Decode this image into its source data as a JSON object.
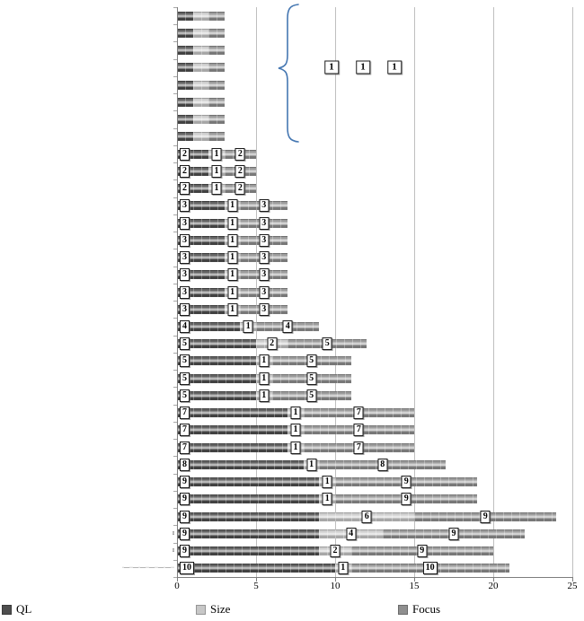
{
  "chart_data": {
    "type": "bar",
    "orientation": "horizontal",
    "stacked": true,
    "series_names": [
      "QL",
      "Size",
      "Focus"
    ],
    "colors": {
      "QL": "#4e4e4e",
      "Size": "#c7c7c7",
      "Focus": "#8f8f8f"
    },
    "x_axis": {
      "ticks": [
        0,
        5,
        10,
        15,
        20,
        25
      ],
      "min": 0,
      "max": 25,
      "gridlines": true
    },
    "rows": [
      {
        "ql": 1,
        "size": 1,
        "focus": 1,
        "labels": false
      },
      {
        "ql": 1,
        "size": 1,
        "focus": 1,
        "labels": false
      },
      {
        "ql": 1,
        "size": 1,
        "focus": 1,
        "labels": false
      },
      {
        "ql": 1,
        "size": 1,
        "focus": 1,
        "labels": false
      },
      {
        "ql": 1,
        "size": 1,
        "focus": 1,
        "labels": false
      },
      {
        "ql": 1,
        "size": 1,
        "focus": 1,
        "labels": false
      },
      {
        "ql": 1,
        "size": 1,
        "focus": 1,
        "labels": false
      },
      {
        "ql": 1,
        "size": 1,
        "focus": 1,
        "labels": false
      },
      {
        "ql": 2,
        "size": 1,
        "focus": 2,
        "labels": true
      },
      {
        "ql": 2,
        "size": 1,
        "focus": 2,
        "labels": true
      },
      {
        "ql": 2,
        "size": 1,
        "focus": 2,
        "labels": true
      },
      {
        "ql": 3,
        "size": 1,
        "focus": 3,
        "labels": true
      },
      {
        "ql": 3,
        "size": 1,
        "focus": 3,
        "labels": true
      },
      {
        "ql": 3,
        "size": 1,
        "focus": 3,
        "labels": true
      },
      {
        "ql": 3,
        "size": 1,
        "focus": 3,
        "labels": true
      },
      {
        "ql": 3,
        "size": 1,
        "focus": 3,
        "labels": true
      },
      {
        "ql": 3,
        "size": 1,
        "focus": 3,
        "labels": true
      },
      {
        "ql": 3,
        "size": 1,
        "focus": 3,
        "labels": true
      },
      {
        "ql": 4,
        "size": 1,
        "focus": 4,
        "labels": true
      },
      {
        "ql": 5,
        "size": 2,
        "focus": 5,
        "labels": true
      },
      {
        "ql": 5,
        "size": 1,
        "focus": 5,
        "labels": true
      },
      {
        "ql": 5,
        "size": 1,
        "focus": 5,
        "labels": true
      },
      {
        "ql": 5,
        "size": 1,
        "focus": 5,
        "labels": true
      },
      {
        "ql": 7,
        "size": 1,
        "focus": 7,
        "labels": true
      },
      {
        "ql": 7,
        "size": 1,
        "focus": 7,
        "labels": true
      },
      {
        "ql": 7,
        "size": 1,
        "focus": 7,
        "labels": true
      },
      {
        "ql": 8,
        "size": 1,
        "focus": 8,
        "labels": true
      },
      {
        "ql": 9,
        "size": 1,
        "focus": 9,
        "labels": true
      },
      {
        "ql": 9,
        "size": 1,
        "focus": 9,
        "labels": true
      },
      {
        "ql": 9,
        "size": 6,
        "focus": 9,
        "labels": true
      },
      {
        "ql": 9,
        "size": 4,
        "focus": 9,
        "labels": true
      },
      {
        "ql": 9,
        "size": 2,
        "focus": 9,
        "labels": true
      },
      {
        "ql": 10,
        "size": 1,
        "focus": 10,
        "labels": true
      }
    ],
    "annotation": {
      "labels": [
        "1",
        "1",
        "1"
      ],
      "brace_color": "#4577b2"
    },
    "y_axis_labels": [
      {
        "row_index": 30,
        "text": "I"
      },
      {
        "row_index": 31,
        "text": "I"
      },
      {
        "row_index": 32,
        "text": "·—··—·—··—··—·—··"
      }
    ]
  },
  "legend": {
    "items": [
      {
        "name": "QL"
      },
      {
        "name": "Size"
      },
      {
        "name": "Focus"
      }
    ]
  }
}
